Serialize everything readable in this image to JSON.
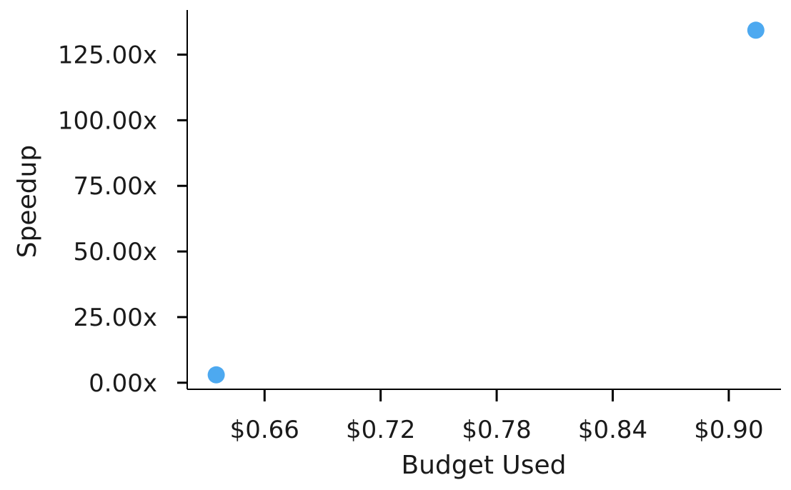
{
  "colors": {
    "marker": "#4da9f0",
    "axis": "#000000",
    "text": "#1a1a1a"
  },
  "chart_data": {
    "type": "scatter",
    "title": "",
    "xlabel": "Budget Used",
    "ylabel": "Speedup",
    "xlim": [
      0.62,
      0.927
    ],
    "ylim": [
      -2.5,
      142
    ],
    "x_ticks": [
      0.66,
      0.72,
      0.78,
      0.84,
      0.9
    ],
    "x_tick_labels": [
      "$0.66",
      "$0.72",
      "$0.78",
      "$0.84",
      "$0.90"
    ],
    "y_ticks": [
      0,
      25,
      50,
      75,
      100,
      125
    ],
    "y_tick_labels": [
      "0.00x",
      "25.00x",
      "50.00x",
      "75.00x",
      "100.00x",
      "125.00x"
    ],
    "grid": false,
    "legend": "none",
    "points": [
      {
        "x": 0.635,
        "y": 3.0
      },
      {
        "x": 0.914,
        "y": 134.3
      }
    ]
  }
}
